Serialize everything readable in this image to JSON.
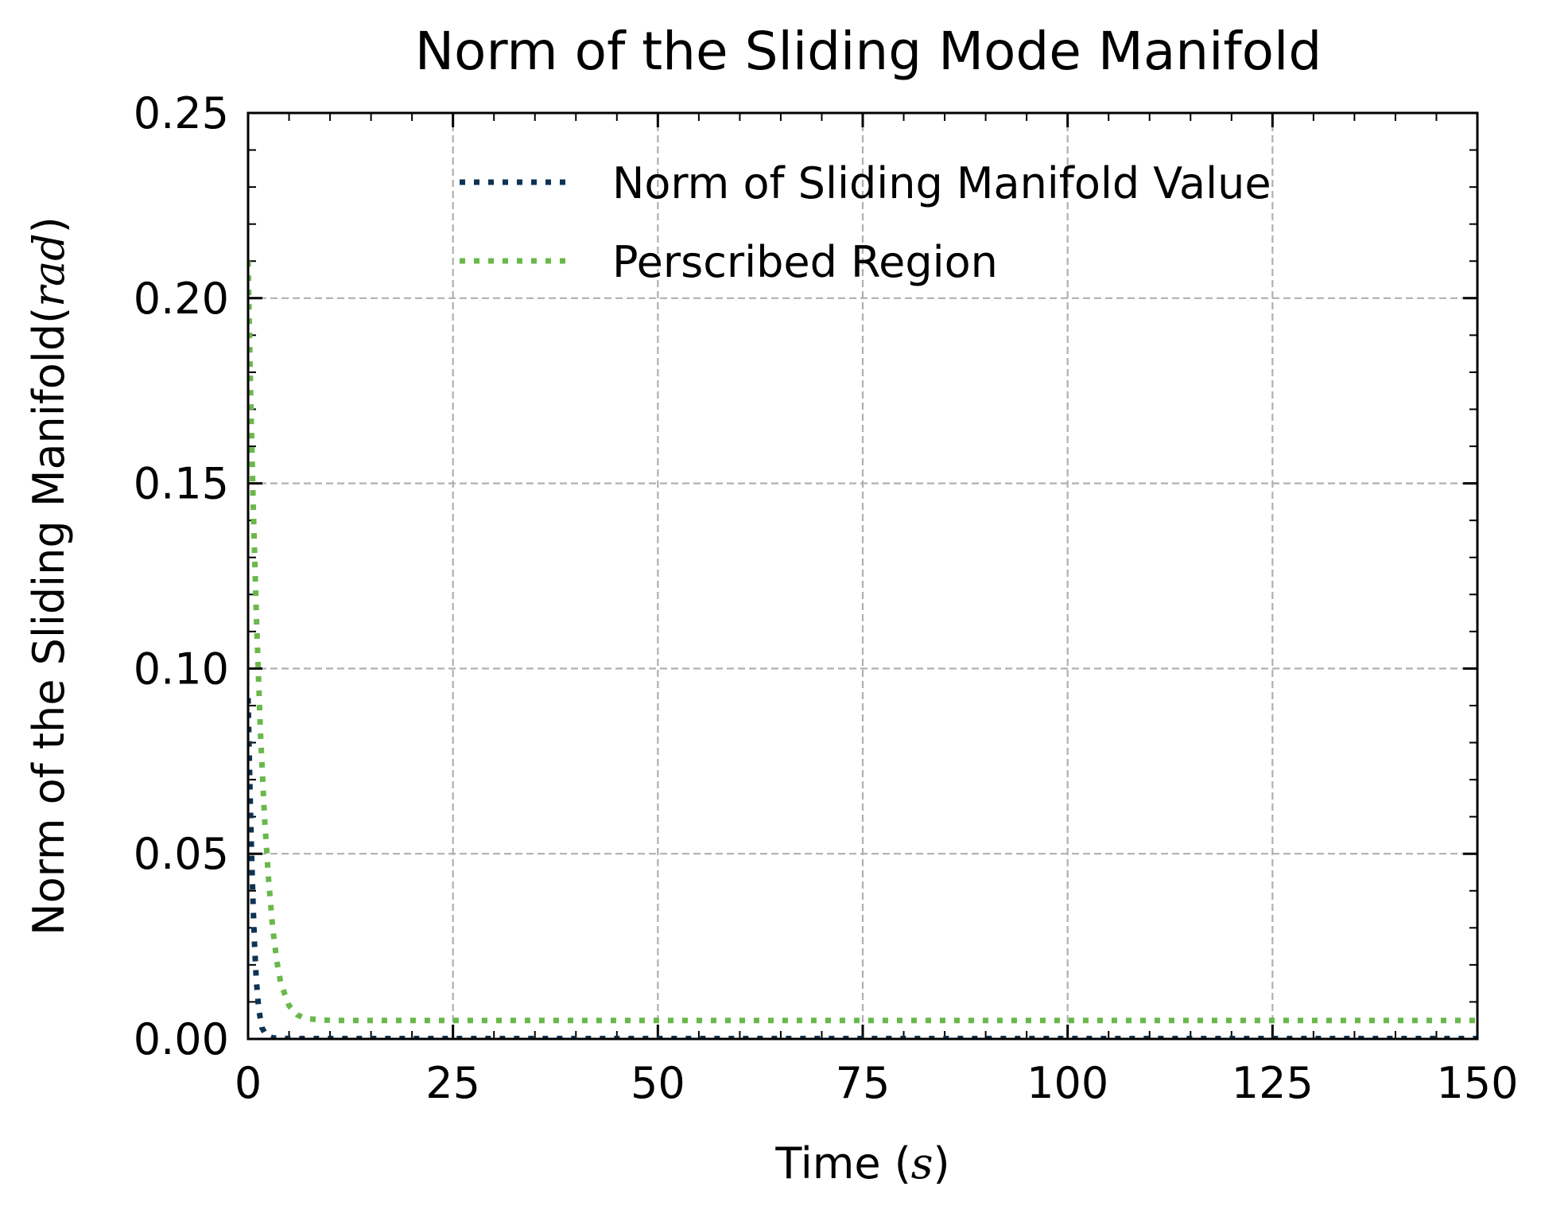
{
  "chart_data": {
    "type": "line",
    "title": "Norm of the Sliding Mode Manifold",
    "xlabel": {
      "prefix": "Time (",
      "math": "s",
      "suffix": ")"
    },
    "ylabel": {
      "prefix": "Norm of the Sliding Manifold(",
      "math": "rad",
      "suffix": ")"
    },
    "xlim": [
      0,
      150
    ],
    "ylim": [
      0,
      0.25
    ],
    "xticks": [
      0,
      25,
      50,
      75,
      100,
      125,
      150
    ],
    "xtick_labels": [
      "0",
      "25",
      "50",
      "75",
      "100",
      "125",
      "150"
    ],
    "yticks": [
      0,
      0.05,
      0.1,
      0.15,
      0.2,
      0.25
    ],
    "ytick_labels": [
      "0.00",
      "0.05",
      "0.10",
      "0.15",
      "0.20",
      "0.25"
    ],
    "x_minor_step": 5,
    "y_minor_step": 0.01,
    "grid": true,
    "legend_position": "top-right",
    "series": [
      {
        "name": "Norm of Sliding Manifold Value",
        "color": "#0d3354",
        "linestyle": "dotted",
        "x": [
          0,
          0.2,
          0.4,
          0.6,
          0.8,
          1.0,
          1.3,
          1.7,
          2.2,
          3,
          5,
          10,
          30,
          60,
          90,
          120,
          150
        ],
        "y": [
          0.092,
          0.07,
          0.052,
          0.037,
          0.025,
          0.016,
          0.008,
          0.003,
          0.001,
          0.0003,
          0.0001,
          0.0001,
          0.0001,
          0.0001,
          0.0001,
          0.0001,
          0.0001
        ]
      },
      {
        "name": "Perscribed Region",
        "color": "#6ab84a",
        "linestyle": "dotted",
        "x": [
          0,
          0.3,
          0.6,
          1.0,
          1.5,
          2.0,
          2.5,
          3.0,
          3.5,
          4.0,
          5.0,
          6.0,
          7.0,
          10,
          20,
          50,
          100,
          150
        ],
        "y": [
          0.21,
          0.175,
          0.146,
          0.115,
          0.083,
          0.06,
          0.043,
          0.03,
          0.021,
          0.015,
          0.009,
          0.0065,
          0.0055,
          0.005,
          0.005,
          0.005,
          0.005,
          0.005
        ]
      }
    ]
  }
}
